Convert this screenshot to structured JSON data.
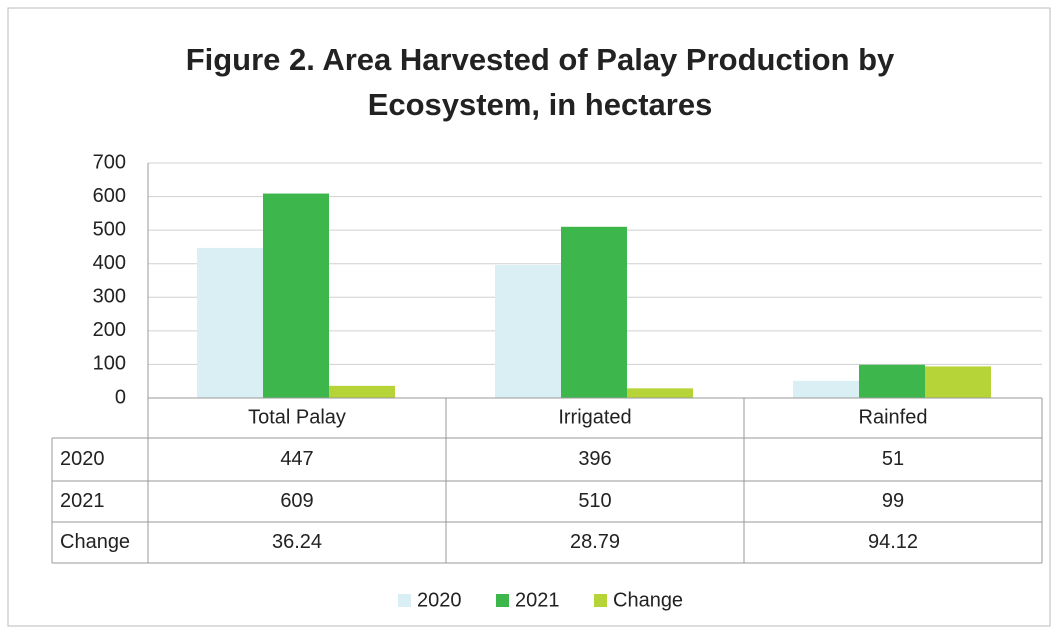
{
  "chart_data": {
    "type": "bar",
    "title": "Figure 2. Area Harvested of Palay Production by",
    "subtitle": "Ecosystem, in hectares",
    "categories": [
      "Total Palay",
      "Irrigated",
      "Rainfed"
    ],
    "series": [
      {
        "name": "2020",
        "color": "#d9eff4",
        "values": [
          447,
          396,
          51
        ]
      },
      {
        "name": "2021",
        "color": "#3db64b",
        "values": [
          609,
          510,
          99
        ]
      },
      {
        "name": "Change",
        "color": "#b6d337",
        "values": [
          36.24,
          28.79,
          94.12
        ]
      }
    ],
    "ylim": [
      0,
      700
    ],
    "yticks": [
      0,
      100,
      200,
      300,
      400,
      500,
      600,
      700
    ],
    "grid": true,
    "legend": "bottom"
  }
}
